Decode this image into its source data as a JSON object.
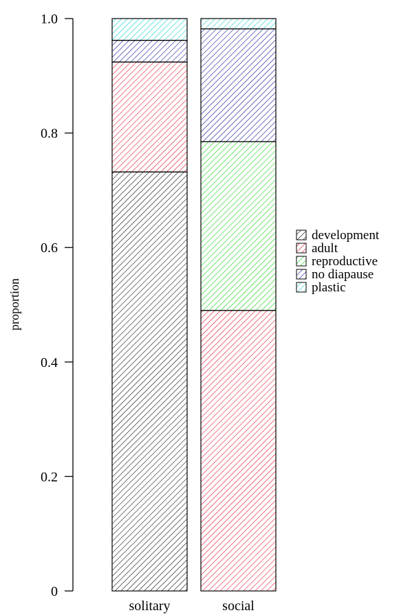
{
  "chart_data": {
    "type": "bar",
    "stacked": true,
    "title": "",
    "xlabel": "",
    "ylabel": "proportion",
    "ylim": [
      0,
      1
    ],
    "yticks": [
      "0",
      "0.2",
      "0.4",
      "0.6",
      "0.8",
      "1.0"
    ],
    "yticks_values": [
      0,
      0.2,
      0.4,
      0.6,
      0.8,
      1.0
    ],
    "categories": [
      "solitary",
      "social"
    ],
    "series": [
      {
        "name": "development",
        "values": [
          0.732,
          0.0
        ],
        "color": "#000000"
      },
      {
        "name": "adult",
        "values": [
          0.192,
          0.49
        ],
        "color": "#e0001b"
      },
      {
        "name": "reproductive",
        "values": [
          0.0,
          0.295
        ],
        "color": "#00cc00"
      },
      {
        "name": "no diapause",
        "values": [
          0.038,
          0.197
        ],
        "color": "#00008b"
      },
      {
        "name": "plastic",
        "values": [
          0.038,
          0.018
        ],
        "color": "#00cccc"
      }
    ],
    "pattern": "diagonal-hatch",
    "legend_position": "right",
    "grid": false
  }
}
